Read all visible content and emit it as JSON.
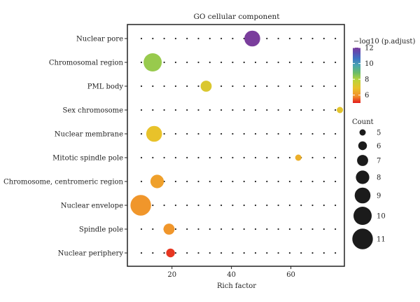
{
  "chart_data": {
    "type": "scatter",
    "title": "GO cellular component",
    "xlabel": "Rich factor",
    "ylabel": "",
    "xlim": [
      5,
      78
    ],
    "xticks": [
      20,
      40,
      60
    ],
    "grid": "dotted",
    "categories": [
      "Nuclear pore",
      "Chromosomal region",
      "PML body",
      "Sex chromosome",
      "Nuclear membrane",
      "Mitotic spindle pole",
      "Chromosome, centromeric region",
      "Nuclear envelope",
      "Spindle pole",
      "Nuclear periphery"
    ],
    "points": [
      {
        "term": "Nuclear pore",
        "rich_factor": 47,
        "count": 9,
        "neg_log10_padj": 12.0
      },
      {
        "term": "Chromosomal region",
        "rich_factor": 13.5,
        "count": 10,
        "neg_log10_padj": 8.3
      },
      {
        "term": "PML body",
        "rich_factor": 31.5,
        "count": 7,
        "neg_log10_padj": 7.2
      },
      {
        "term": "Sex chromosome",
        "rich_factor": 76.5,
        "count": 5,
        "neg_log10_padj": 7.0
      },
      {
        "term": "Nuclear membrane",
        "rich_factor": 14,
        "count": 9,
        "neg_log10_padj": 6.9
      },
      {
        "term": "Mitotic spindle pole",
        "rich_factor": 62.5,
        "count": 5,
        "neg_log10_padj": 6.5
      },
      {
        "term": "Chromosome, centromeric region",
        "rich_factor": 15,
        "count": 8,
        "neg_log10_padj": 6.2
      },
      {
        "term": "Nuclear envelope",
        "rich_factor": 9.5,
        "count": 11,
        "neg_log10_padj": 6.0
      },
      {
        "term": "Spindle pole",
        "rich_factor": 19,
        "count": 7,
        "neg_log10_padj": 6.0
      },
      {
        "term": "Nuclear periphery",
        "rich_factor": 19.5,
        "count": 6,
        "neg_log10_padj": 5.2
      }
    ],
    "color_legend": {
      "title": "−log10 (p.adjust)",
      "ticks": [
        6,
        8,
        10,
        12
      ],
      "range": [
        5,
        12
      ],
      "colors": [
        "#e31a1c",
        "#f28e2b",
        "#e8c22a",
        "#b8d43a",
        "#68bb6a",
        "#4aa6b0",
        "#3c74c4",
        "#5e4bb0",
        "#7a3d9c"
      ]
    },
    "size_legend": {
      "title": "Count",
      "values": [
        5,
        6,
        7,
        8,
        9,
        10,
        11
      ]
    },
    "legend_placement": "right"
  }
}
